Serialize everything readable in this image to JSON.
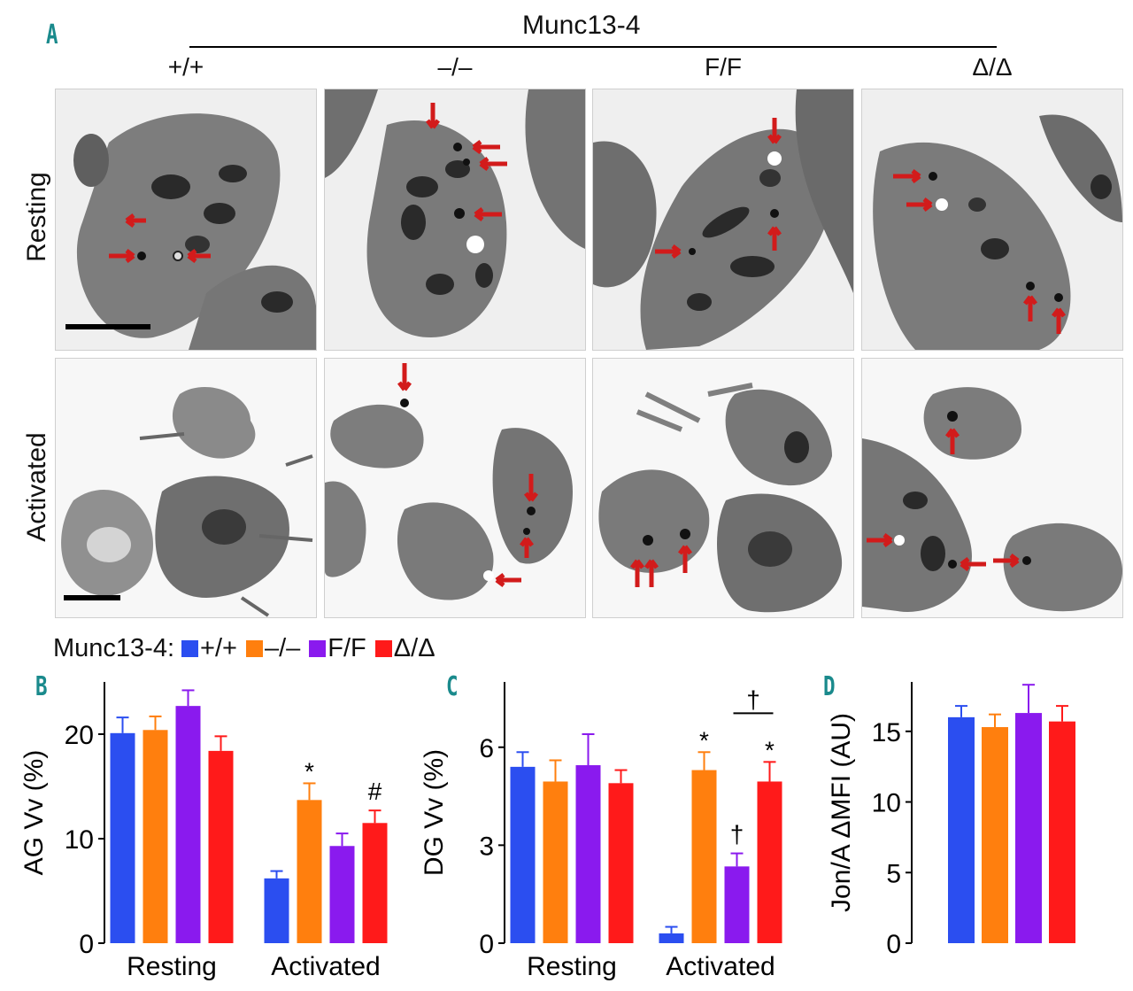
{
  "panel_letters": {
    "a": "A",
    "b": "B",
    "c": "C",
    "d": "D"
  },
  "panel_a": {
    "header": "Munc13-4",
    "genotypes": [
      "+/+",
      "–/–",
      "F/F",
      "Δ/Δ"
    ],
    "rows": [
      "Resting",
      "Activated"
    ]
  },
  "legend": {
    "title": "Munc13-4:",
    "items": [
      {
        "label": "+/+",
        "color": "#2b4ef0"
      },
      {
        "label": "–/–",
        "color": "#ff7f0e"
      },
      {
        "label": "F/F",
        "color": "#8a1aee"
      },
      {
        "label": "Δ/Δ",
        "color": "#ff1a1a"
      }
    ]
  },
  "colors": {
    "wt": "#2b4ef0",
    "ko": "#ff7f0e",
    "ff": "#8a1aee",
    "dd": "#ff1a1a",
    "arrow": "#d21b1b",
    "panel_letter": "#1a8a8c"
  },
  "chart_data": [
    {
      "id": "B",
      "type": "bar",
      "ylabel": "AG Vv (%)",
      "ylim": [
        0,
        25
      ],
      "yticks": [
        0,
        10,
        20
      ],
      "groups": [
        "Resting",
        "Activated"
      ],
      "series": [
        {
          "name": "+/+",
          "values": [
            20.1,
            6.2
          ],
          "errors": [
            1.5,
            0.7
          ]
        },
        {
          "name": "–/–",
          "values": [
            20.4,
            13.7
          ],
          "errors": [
            1.3,
            1.6
          ]
        },
        {
          "name": "F/F",
          "values": [
            22.7,
            9.3
          ],
          "errors": [
            1.5,
            1.2
          ]
        },
        {
          "name": "Δ/Δ",
          "values": [
            18.4,
            11.5
          ],
          "errors": [
            1.4,
            1.2
          ]
        }
      ],
      "annotations": [
        {
          "group": 1,
          "series": 1,
          "text": "*"
        },
        {
          "group": 1,
          "series": 3,
          "text": "#"
        }
      ]
    },
    {
      "id": "C",
      "type": "bar",
      "ylabel": "DG Vv (%)",
      "ylim": [
        0,
        8
      ],
      "yticks": [
        0,
        3,
        6
      ],
      "groups": [
        "Resting",
        "Activated"
      ],
      "series": [
        {
          "name": "+/+",
          "values": [
            5.4,
            0.3
          ],
          "errors": [
            0.45,
            0.2
          ]
        },
        {
          "name": "–/–",
          "values": [
            4.95,
            5.3
          ],
          "errors": [
            0.65,
            0.55
          ]
        },
        {
          "name": "F/F",
          "values": [
            5.45,
            2.35
          ],
          "errors": [
            0.95,
            0.4
          ]
        },
        {
          "name": "Δ/Δ",
          "values": [
            4.9,
            4.95
          ],
          "errors": [
            0.4,
            0.6
          ]
        }
      ],
      "annotations": [
        {
          "group": 1,
          "series": 1,
          "text": "*"
        },
        {
          "group": 1,
          "series": 2,
          "text": "†"
        },
        {
          "group": 1,
          "series": 3,
          "text": "*"
        },
        {
          "group": 1,
          "bracket": [
            2,
            3
          ],
          "text": "†"
        }
      ]
    },
    {
      "id": "D",
      "type": "bar",
      "ylabel": "Jon/A ΔMFI (AU)",
      "ylim": [
        0,
        18.5
      ],
      "yticks": [
        0,
        5,
        10,
        15
      ],
      "groups": [
        ""
      ],
      "series": [
        {
          "name": "+/+",
          "values": [
            16.0
          ],
          "errors": [
            0.8
          ]
        },
        {
          "name": "–/–",
          "values": [
            15.3
          ],
          "errors": [
            0.9
          ]
        },
        {
          "name": "F/F",
          "values": [
            16.3
          ],
          "errors": [
            2.0
          ]
        },
        {
          "name": "Δ/Δ",
          "values": [
            15.7
          ],
          "errors": [
            1.1
          ]
        }
      ],
      "annotations": []
    }
  ]
}
